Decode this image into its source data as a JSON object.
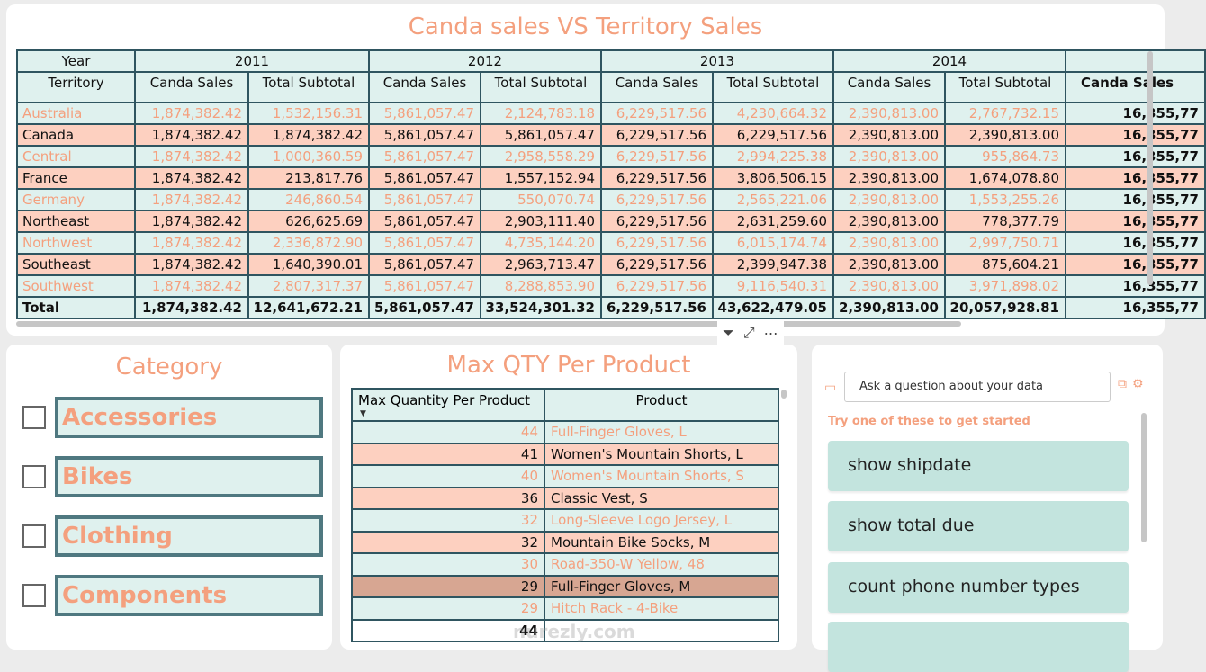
{
  "matrix": {
    "title": "Canda sales VS Territory Sales",
    "row_header_year": "Year",
    "row_header_territory": "Territory",
    "years": [
      "2011",
      "2012",
      "2013",
      "2014"
    ],
    "col_canada": "Canda Sales",
    "col_subtotal": "Total Subtotal",
    "grand_col": "Canda Sales",
    "rows": [
      {
        "territory": "Australia",
        "values": [
          "1,874,382.42",
          "1,532,156.31",
          "5,861,057.47",
          "2,124,783.18",
          "6,229,517.56",
          "4,230,664.32",
          "2,390,813.00",
          "2,767,732.15",
          "16,355,77"
        ]
      },
      {
        "territory": "Canada",
        "values": [
          "1,874,382.42",
          "1,874,382.42",
          "5,861,057.47",
          "5,861,057.47",
          "6,229,517.56",
          "6,229,517.56",
          "2,390,813.00",
          "2,390,813.00",
          "16,355,77"
        ]
      },
      {
        "territory": "Central",
        "values": [
          "1,874,382.42",
          "1,000,360.59",
          "5,861,057.47",
          "2,958,558.29",
          "6,229,517.56",
          "2,994,225.38",
          "2,390,813.00",
          "955,864.73",
          "16,355,77"
        ]
      },
      {
        "territory": "France",
        "values": [
          "1,874,382.42",
          "213,817.76",
          "5,861,057.47",
          "1,557,152.94",
          "6,229,517.56",
          "3,806,506.15",
          "2,390,813.00",
          "1,674,078.80",
          "16,355,77"
        ]
      },
      {
        "territory": "Germany",
        "values": [
          "1,874,382.42",
          "246,860.54",
          "5,861,057.47",
          "550,070.74",
          "6,229,517.56",
          "2,565,221.06",
          "2,390,813.00",
          "1,553,255.26",
          "16,355,77"
        ]
      },
      {
        "territory": "Northeast",
        "values": [
          "1,874,382.42",
          "626,625.69",
          "5,861,057.47",
          "2,903,111.40",
          "6,229,517.56",
          "2,631,259.60",
          "2,390,813.00",
          "778,377.79",
          "16,355,77"
        ]
      },
      {
        "territory": "Northwest",
        "values": [
          "1,874,382.42",
          "2,336,872.90",
          "5,861,057.47",
          "4,735,144.20",
          "6,229,517.56",
          "6,015,174.74",
          "2,390,813.00",
          "2,997,750.71",
          "16,355,77"
        ]
      },
      {
        "territory": "Southeast",
        "values": [
          "1,874,382.42",
          "1,640,390.01",
          "5,861,057.47",
          "2,963,713.47",
          "6,229,517.56",
          "2,399,947.38",
          "2,390,813.00",
          "875,604.21",
          "16,355,77"
        ]
      },
      {
        "territory": "Southwest",
        "values": [
          "1,874,382.42",
          "2,807,317.37",
          "5,861,057.47",
          "8,288,853.90",
          "6,229,517.56",
          "9,116,540.31",
          "2,390,813.00",
          "3,971,898.02",
          "16,355,77"
        ]
      }
    ],
    "total": {
      "label": "Total",
      "values": [
        "1,874,382.42",
        "12,641,672.21",
        "5,861,057.47",
        "33,524,301.32",
        "6,229,517.56",
        "43,622,479.05",
        "2,390,813.00",
        "20,057,928.81",
        "16,355,77"
      ]
    }
  },
  "visual_tools": {
    "filter_icon": "filter-icon",
    "focus_icon": "focus-mode-icon",
    "more_icon": "more-options-icon"
  },
  "category": {
    "title": "Category",
    "items": [
      {
        "label": "Accessories"
      },
      {
        "label": "Bikes"
      },
      {
        "label": "Clothing"
      },
      {
        "label": "Components"
      }
    ]
  },
  "maxqty": {
    "title": "Max QTY Per Product",
    "col_qty": "Max Quantity Per Product",
    "col_product": "Product",
    "rows": [
      {
        "qty": "44",
        "product": "Full-Finger Gloves, L"
      },
      {
        "qty": "41",
        "product": "Women's Mountain Shorts, L"
      },
      {
        "qty": "40",
        "product": "Women's Mountain Shorts, S"
      },
      {
        "qty": "36",
        "product": "Classic Vest, S"
      },
      {
        "qty": "32",
        "product": "Long-Sleeve Logo Jersey, L"
      },
      {
        "qty": "32",
        "product": "Mountain Bike Socks, M"
      },
      {
        "qty": "30",
        "product": "Road-350-W Yellow, 48"
      },
      {
        "qty": "29",
        "product": "Full-Finger Gloves, M"
      },
      {
        "qty": "29",
        "product": "Hitch Rack - 4-Bike"
      }
    ],
    "total": {
      "qty": "44",
      "product": ""
    }
  },
  "qa": {
    "placeholder": "Ask a question about your data",
    "hint": "Try one of these to get started",
    "suggestions": [
      "show shipdate",
      "show total due",
      "count phone number types",
      ""
    ]
  },
  "watermark": "nurezly.com",
  "colors": {
    "accent": "#f4a07e",
    "row_light": "#dff1ee",
    "row_salmon": "#fdd0c0",
    "border": "#2f5560"
  }
}
